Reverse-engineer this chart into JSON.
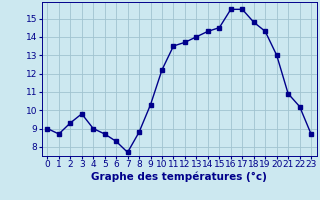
{
  "x": [
    0,
    1,
    2,
    3,
    4,
    5,
    6,
    7,
    8,
    9,
    10,
    11,
    12,
    13,
    14,
    15,
    16,
    17,
    18,
    19,
    20,
    21,
    22,
    23
  ],
  "y": [
    9.0,
    8.7,
    9.3,
    9.8,
    9.0,
    8.7,
    8.3,
    7.7,
    8.8,
    10.3,
    12.2,
    13.5,
    13.7,
    14.0,
    14.3,
    14.5,
    15.5,
    15.5,
    14.8,
    14.3,
    13.0,
    10.9,
    10.2,
    8.7
  ],
  "line_color": "#00008b",
  "marker": "s",
  "marker_size": 2.5,
  "bg_color": "#cce8f0",
  "grid_color": "#a0c4d0",
  "xlabel": "Graphe des températures (°c)",
  "xlabel_fontsize": 7.5,
  "xlim": [
    -0.5,
    23.5
  ],
  "ylim": [
    7.5,
    15.9
  ],
  "yticks": [
    8,
    9,
    10,
    11,
    12,
    13,
    14,
    15
  ],
  "xticks": [
    0,
    1,
    2,
    3,
    4,
    5,
    6,
    7,
    8,
    9,
    10,
    11,
    12,
    13,
    14,
    15,
    16,
    17,
    18,
    19,
    20,
    21,
    22,
    23
  ],
  "tick_fontsize": 6.5,
  "line_width": 1.0
}
